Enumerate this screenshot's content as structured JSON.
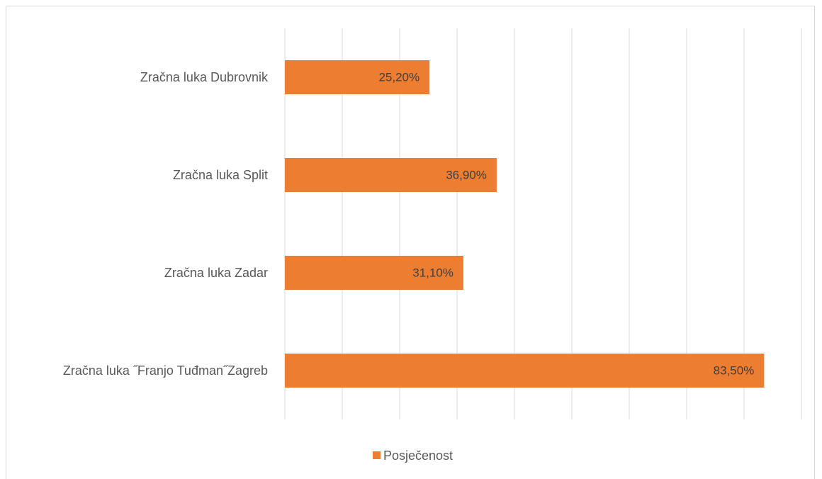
{
  "chart_data": {
    "type": "bar",
    "orientation": "horizontal",
    "categories": [
      "Zračna luka Dubrovnik",
      "Zračna luka Split",
      "Zračna luka Zadar",
      "Zračna luka ˝Franjo Tuđman˝Zagreb"
    ],
    "series": [
      {
        "name": "Posječenost",
        "color": "#ed7d31",
        "values": [
          25.2,
          36.9,
          31.1,
          83.5
        ],
        "value_labels": [
          "25,20%",
          "36,90%",
          "31,10%",
          "83,50%"
        ]
      }
    ],
    "xlim": [
      0,
      90
    ],
    "xticks": [
      0,
      10,
      20,
      30,
      40,
      50,
      60,
      70,
      80,
      90
    ],
    "grid": true,
    "legend": "bottom"
  }
}
